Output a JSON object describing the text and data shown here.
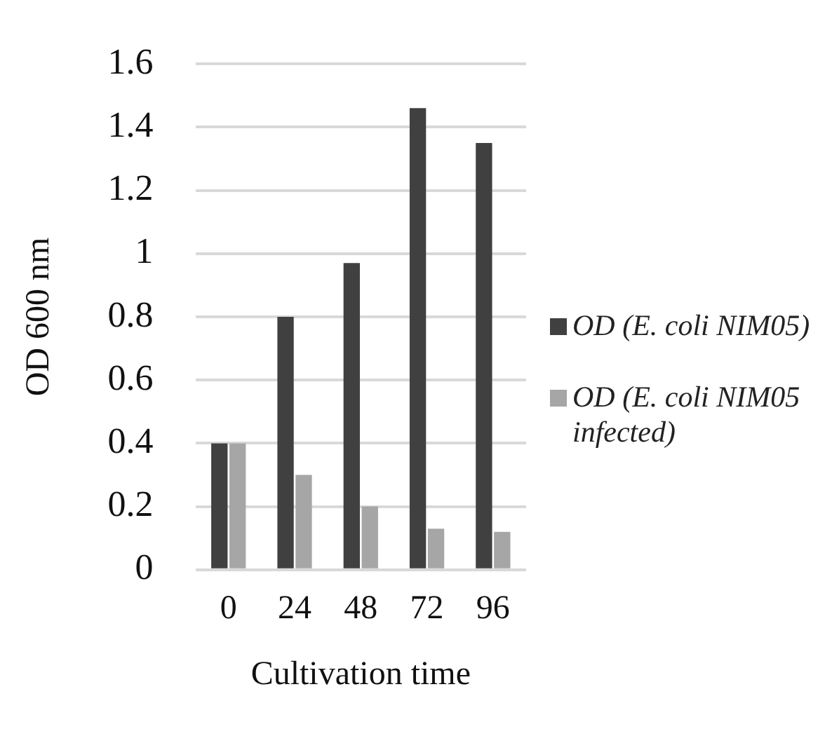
{
  "chart_data": {
    "type": "bar",
    "xlabel": "Cultivation time",
    "ylabel": "OD 600 nm",
    "categories": [
      "0",
      "24",
      "48",
      "72",
      "96"
    ],
    "series": [
      {
        "name": "OD (E. coli NIM05)",
        "color": "#404040",
        "values": [
          0.4,
          0.8,
          0.97,
          1.46,
          1.35
        ]
      },
      {
        "name": "OD (E. coli NIM05 infected)",
        "color": "#a6a6a6",
        "values": [
          0.4,
          0.3,
          0.2,
          0.13,
          0.12
        ]
      }
    ],
    "ylim": [
      0,
      1.6
    ],
    "yticks": [
      0,
      0.2,
      0.4,
      0.6,
      0.8,
      1,
      1.2,
      1.4,
      1.6
    ],
    "grid": "y",
    "legend": "right"
  }
}
